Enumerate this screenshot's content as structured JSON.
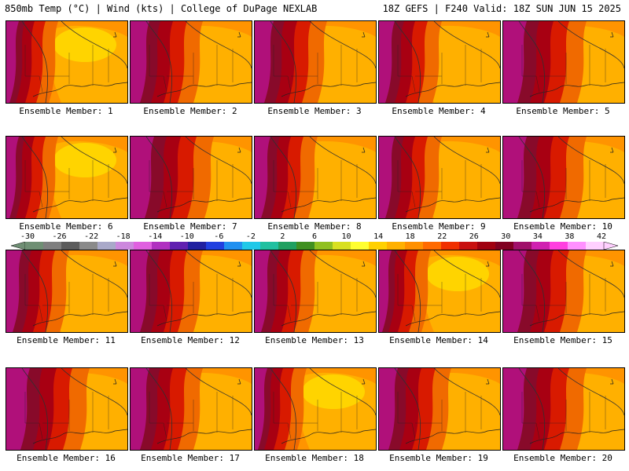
{
  "header": {
    "left": "850mb Temp (°C) | Wind (kts) | College of DuPage NEXLAB",
    "right": "18Z GEFS | F240 Valid: 18Z SUN JUN 15 2025"
  },
  "members": [
    {
      "label": "Ensemble Member: 1",
      "variant": "cool"
    },
    {
      "label": "Ensemble Member: 2",
      "variant": "warm"
    },
    {
      "label": "Ensemble Member: 3",
      "variant": "warm"
    },
    {
      "label": "Ensemble Member: 4",
      "variant": "mid"
    },
    {
      "label": "Ensemble Member: 5",
      "variant": "hot"
    },
    {
      "label": "Ensemble Member: 6",
      "variant": "cool"
    },
    {
      "label": "Ensemble Member: 7",
      "variant": "hot"
    },
    {
      "label": "Ensemble Member: 8",
      "variant": "mid"
    },
    {
      "label": "Ensemble Member: 9",
      "variant": "mid"
    },
    {
      "label": "Ensemble Member: 10",
      "variant": "hot"
    },
    {
      "label": "Ensemble Member: 11",
      "variant": "mid"
    },
    {
      "label": "Ensemble Member: 12",
      "variant": "warm"
    },
    {
      "label": "Ensemble Member: 13",
      "variant": "mid"
    },
    {
      "label": "Ensemble Member: 14",
      "variant": "cool"
    },
    {
      "label": "Ensemble Member: 15",
      "variant": "hot"
    },
    {
      "label": "Ensemble Member: 16",
      "variant": "hot"
    },
    {
      "label": "Ensemble Member: 17",
      "variant": "warm"
    },
    {
      "label": "Ensemble Member: 18",
      "variant": "cool"
    },
    {
      "label": "Ensemble Member: 19",
      "variant": "warm"
    },
    {
      "label": "Ensemble Member: 20",
      "variant": "hot"
    }
  ],
  "colorbar": {
    "tick_labels": [
      "-30",
      "-26",
      "-22",
      "-18",
      "-14",
      "-10",
      "-6",
      "-2",
      "2",
      "6",
      "10",
      "14",
      "18",
      "22",
      "26",
      "30",
      "34",
      "38",
      "42"
    ],
    "colors": [
      "#6f8f74",
      "#7f7f7f",
      "#5c5c5c",
      "#8a8a8a",
      "#a9a9c9",
      "#cc88dd",
      "#e060e0",
      "#b030c0",
      "#6020b0",
      "#2020a0",
      "#2040e0",
      "#2090f0",
      "#20c8e8",
      "#20c0a0",
      "#20a060",
      "#409020",
      "#90c020",
      "#d8e020",
      "#ffff30",
      "#ffd000",
      "#ffb000",
      "#ff9000",
      "#ff6a00",
      "#f03000",
      "#c81010",
      "#a00010",
      "#800020",
      "#a0106a",
      "#d020b0",
      "#ff40e0",
      "#ff90ff",
      "#ffd0ff"
    ]
  },
  "palette": {
    "yellow": "#ffd400",
    "gold": "#ffb000",
    "orange": "#ff9400",
    "dark_orange": "#f06a00",
    "red": "#d81a00",
    "dark_red": "#a80012",
    "maroon": "#880a2a",
    "magenta": "#b0107a"
  }
}
